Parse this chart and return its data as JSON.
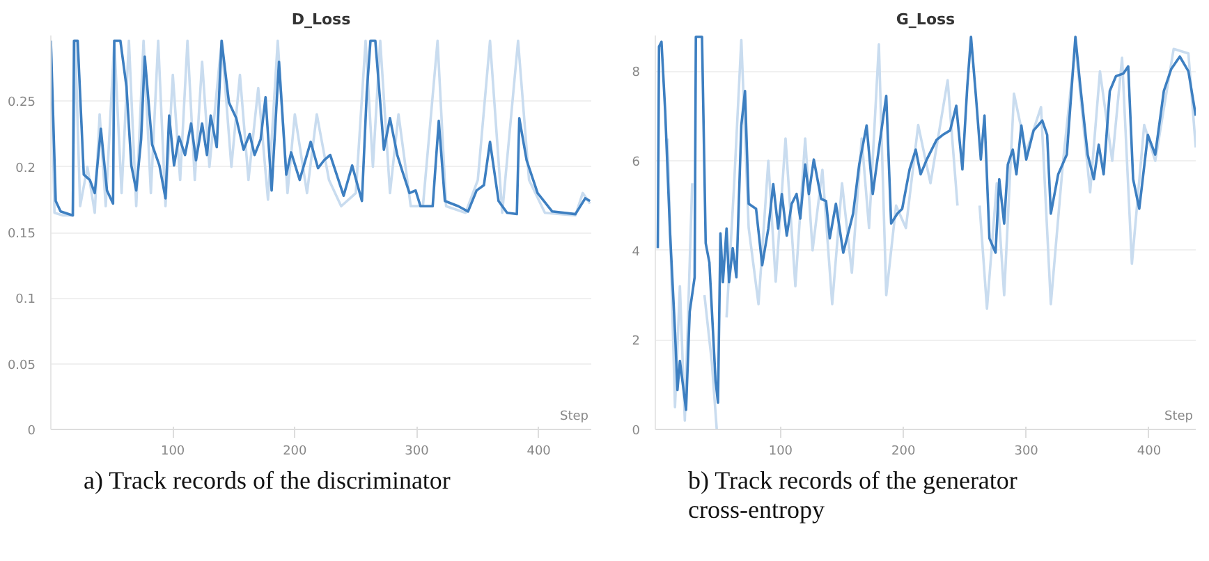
{
  "chart_data": [
    {
      "type": "line",
      "title": "D_Loss",
      "xlabel": "Step",
      "annotations": [
        "a) Track records of the discriminator"
      ],
      "xlim": [
        0,
        443
      ],
      "ylim": [
        0,
        0.3
      ],
      "xticks": [
        100,
        200,
        300,
        400
      ],
      "yticks": [
        0,
        0.05,
        0.1,
        0.15,
        0.2,
        0.25
      ],
      "grid": "y",
      "line_style": "solid",
      "series": [
        {
          "color": "#c9dcef",
          "x": [
            0,
            3,
            10,
            18,
            20,
            24,
            30,
            36,
            40,
            45,
            52,
            58,
            64,
            70,
            76,
            82,
            88,
            94,
            100,
            106,
            112,
            118,
            124,
            130,
            140,
            148,
            155,
            162,
            170,
            178,
            186,
            194,
            200,
            210,
            218,
            228,
            238,
            250,
            258,
            264,
            270,
            278,
            285,
            295,
            305,
            317,
            324,
            340,
            350,
            360,
            370,
            383,
            392,
            405,
            430,
            436,
            442
          ],
          "values": [
            0.296,
            0.165,
            0.163,
            0.163,
            0.296,
            0.17,
            0.2,
            0.165,
            0.24,
            0.17,
            0.296,
            0.18,
            0.296,
            0.17,
            0.296,
            0.18,
            0.296,
            0.17,
            0.27,
            0.19,
            0.296,
            0.19,
            0.28,
            0.2,
            0.296,
            0.2,
            0.27,
            0.19,
            0.26,
            0.175,
            0.296,
            0.18,
            0.24,
            0.18,
            0.24,
            0.19,
            0.17,
            0.18,
            0.296,
            0.2,
            0.296,
            0.18,
            0.24,
            0.17,
            0.17,
            0.296,
            0.17,
            0.165,
            0.19,
            0.296,
            0.165,
            0.296,
            0.19,
            0.165,
            0.163,
            0.18,
            0.172
          ]
        },
        {
          "color": "#3d7fc1",
          "x": [
            0,
            4,
            8,
            18,
            19,
            22,
            27,
            32,
            36,
            41,
            46,
            51,
            52,
            57,
            62,
            66,
            70,
            74,
            77,
            83,
            89,
            94,
            97,
            101,
            105,
            110,
            115,
            119,
            124,
            128,
            131,
            136,
            140,
            146,
            152,
            158,
            163,
            167,
            172,
            176,
            181,
            187,
            193,
            197,
            204,
            213,
            219,
            224,
            229,
            240,
            247,
            255,
            259,
            262,
            266,
            270,
            273,
            278,
            284,
            288,
            294,
            299,
            303,
            313,
            318,
            323,
            334,
            342,
            349,
            355,
            360,
            367,
            374,
            382,
            384,
            390,
            399,
            411,
            430,
            438,
            442
          ],
          "values": [
            0.296,
            0.174,
            0.166,
            0.163,
            0.296,
            0.296,
            0.194,
            0.19,
            0.18,
            0.229,
            0.182,
            0.172,
            0.296,
            0.296,
            0.261,
            0.201,
            0.182,
            0.221,
            0.284,
            0.217,
            0.201,
            0.176,
            0.239,
            0.201,
            0.223,
            0.209,
            0.233,
            0.205,
            0.233,
            0.209,
            0.239,
            0.215,
            0.296,
            0.249,
            0.237,
            0.213,
            0.225,
            0.209,
            0.221,
            0.253,
            0.182,
            0.28,
            0.194,
            0.211,
            0.19,
            0.219,
            0.199,
            0.205,
            0.209,
            0.178,
            0.201,
            0.174,
            0.257,
            0.296,
            0.296,
            0.249,
            0.213,
            0.237,
            0.209,
            0.197,
            0.18,
            0.182,
            0.17,
            0.17,
            0.235,
            0.174,
            0.17,
            0.166,
            0.182,
            0.186,
            0.219,
            0.174,
            0.165,
            0.164,
            0.237,
            0.205,
            0.18,
            0.166,
            0.164,
            0.176,
            0.174
          ]
        }
      ]
    },
    {
      "type": "line",
      "title": "G_Loss",
      "xlabel": "Step",
      "annotations": [
        "b) Track records of the generator cross-entropy"
      ],
      "xlim": [
        -2,
        438
      ],
      "ylim": [
        0,
        8.8
      ],
      "xticks": [
        100,
        200,
        300,
        400
      ],
      "yticks": [
        0,
        2,
        4,
        6,
        8
      ],
      "grid": "y",
      "line_style": "solid",
      "series": [
        {
          "color": "#c9dcef",
          "x": [
            8,
            14,
            18,
            22,
            28,
            32,
            38,
            44,
            48,
            52,
            56,
            62,
            68,
            74,
            82,
            90,
            96,
            104,
            112,
            120,
            126,
            134,
            142,
            150,
            158,
            166,
            172,
            180,
            186,
            194,
            202,
            212,
            222,
            236,
            244,
            254,
            262,
            268,
            276,
            282,
            290,
            300,
            312,
            320,
            330,
            340,
            352,
            360,
            370,
            378,
            386,
            396,
            405,
            420,
            432,
            438
          ],
          "values": [
            6.5,
            0.5,
            3.2,
            0.2,
            5.5,
            null,
            3.0,
            1.5,
            0.0,
            null,
            2.5,
            5.4,
            8.7,
            4.5,
            2.8,
            6.0,
            3.3,
            6.5,
            3.2,
            6.5,
            4.0,
            5.8,
            2.8,
            5.5,
            3.5,
            6.5,
            4.5,
            8.6,
            3.0,
            5.0,
            4.5,
            6.8,
            5.5,
            7.8,
            5.0,
            null,
            5.0,
            2.7,
            5.5,
            3.0,
            7.5,
            6.2,
            7.2,
            2.8,
            6.0,
            8.6,
            5.3,
            8.0,
            6.0,
            8.3,
            3.7,
            6.8,
            6.0,
            8.5,
            8.4,
            6.3
          ]
        },
        {
          "color": "#3d7fc1",
          "x": [
            0,
            1,
            3,
            6,
            10,
            14,
            16,
            18,
            21,
            23,
            26,
            30,
            31,
            36,
            39,
            42,
            47,
            49,
            51,
            53,
            56,
            58,
            61,
            64,
            68,
            71,
            74,
            80,
            85,
            90,
            94,
            98,
            101,
            105,
            109,
            113,
            116,
            120,
            123,
            127,
            133,
            137,
            140,
            145,
            151,
            159,
            164,
            170,
            175,
            181,
            186,
            190,
            195,
            199,
            205,
            210,
            214,
            219,
            227,
            232,
            238,
            243,
            248,
            252,
            255,
            259,
            263,
            266,
            270,
            275,
            278,
            282,
            285,
            289,
            292,
            296,
            300,
            306,
            313,
            317,
            320,
            326,
            333,
            340,
            344,
            350,
            355,
            359,
            363,
            368,
            373,
            379,
            383,
            387,
            392,
            399,
            405,
            412,
            418,
            425,
            432,
            438
          ],
          "values": [
            4.05,
            8.55,
            8.66,
            7.12,
            4.38,
            2.19,
            0.88,
            1.53,
            0.88,
            0.44,
            2.63,
            3.4,
            8.77,
            8.77,
            4.16,
            3.73,
            1.1,
            0.6,
            4.38,
            3.29,
            4.49,
            3.29,
            4.05,
            3.4,
            6.79,
            7.56,
            5.04,
            4.93,
            3.67,
            4.49,
            5.48,
            4.49,
            5.26,
            4.33,
            5.04,
            5.26,
            4.71,
            5.92,
            5.26,
            6.03,
            5.15,
            5.1,
            4.27,
            5.04,
            3.95,
            4.82,
            5.92,
            6.79,
            5.26,
            6.47,
            7.45,
            4.6,
            4.82,
            4.93,
            5.81,
            6.25,
            5.7,
            6.03,
            6.47,
            6.58,
            6.68,
            7.23,
            5.81,
            7.67,
            8.77,
            7.45,
            6.03,
            7.01,
            4.27,
            3.95,
            5.59,
            4.6,
            5.92,
            6.25,
            5.7,
            6.79,
            6.03,
            6.68,
            6.9,
            6.58,
            4.82,
            5.7,
            6.14,
            8.77,
            7.67,
            6.14,
            5.59,
            6.36,
            5.7,
            7.56,
            7.89,
            7.95,
            8.11,
            5.59,
            4.93,
            6.58,
            6.14,
            7.56,
            8.05,
            8.33,
            8.0,
            7.01
          ]
        }
      ]
    }
  ]
}
